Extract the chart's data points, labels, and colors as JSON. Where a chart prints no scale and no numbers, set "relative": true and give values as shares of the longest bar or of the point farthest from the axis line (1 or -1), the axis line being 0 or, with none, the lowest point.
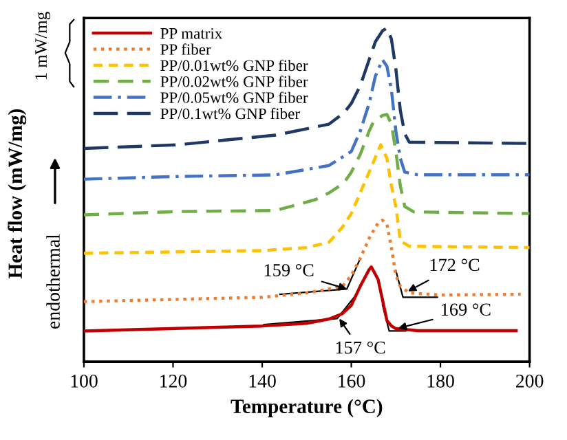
{
  "chart_data": {
    "type": "line",
    "xlabel": "Temperature (°C)",
    "ylabel": "Heat flow (mW/mg)",
    "relative": true,
    "xlim": [
      100,
      200
    ],
    "xticks": [
      100,
      120,
      140,
      160,
      180,
      200
    ],
    "legend": "top left",
    "series": [
      {
        "name": "PP matrix",
        "color": "#c00000",
        "line_style": "solid",
        "x": [
          100,
          140,
          150,
          155,
          158,
          160,
          162,
          163,
          164,
          164.5,
          166,
          167,
          168,
          169,
          170,
          175,
          197
        ],
        "values": [
          0.092,
          0.107,
          0.115,
          0.128,
          0.144,
          0.169,
          0.226,
          0.251,
          0.276,
          0.284,
          0.247,
          0.185,
          0.123,
          0.107,
          0.099,
          0.093,
          0.093
        ]
      },
      {
        "name": "PP fiber",
        "color": "#ed7d31",
        "line_style": "dotted",
        "x": [
          100,
          140,
          150,
          155,
          158,
          160,
          162,
          164,
          166,
          167,
          168,
          169,
          170,
          171,
          173,
          180,
          198
        ],
        "values": [
          0.18,
          0.193,
          0.206,
          0.218,
          0.226,
          0.259,
          0.309,
          0.37,
          0.416,
          0.424,
          0.412,
          0.342,
          0.259,
          0.226,
          0.206,
          0.2,
          0.202
        ]
      },
      {
        "name": "PP/0.01wt% GNP fiber",
        "color": "#ffc000",
        "line_style": "dashed",
        "x": [
          100,
          140,
          150,
          155,
          158,
          160,
          162,
          164,
          166.6,
          168,
          169,
          170,
          171,
          173,
          200
        ],
        "values": [
          0.325,
          0.333,
          0.342,
          0.358,
          0.403,
          0.444,
          0.506,
          0.568,
          0.65,
          0.609,
          0.527,
          0.465,
          0.362,
          0.346,
          0.342
        ]
      },
      {
        "name": "PP/0.02wt% GNP fiber",
        "color": "#70ad47",
        "line_style": "longdashed",
        "x": [
          100,
          121,
          143,
          152,
          155,
          158.3,
          160,
          162,
          164,
          165,
          167,
          168,
          169,
          170,
          171,
          172,
          174,
          200
        ],
        "values": [
          0.44,
          0.45,
          0.453,
          0.486,
          0.506,
          0.535,
          0.568,
          0.621,
          0.691,
          0.72,
          0.738,
          0.741,
          0.712,
          0.63,
          0.527,
          0.465,
          0.449,
          0.444
        ]
      },
      {
        "name": "PP/0.05wt% GNP fiber",
        "color": "#4472c4",
        "line_style": "dashdot",
        "x": [
          100,
          121,
          143,
          155,
          160,
          162,
          164,
          165.4,
          167,
          168,
          169,
          170,
          171,
          172,
          175,
          200
        ],
        "values": [
          0.547,
          0.555,
          0.56,
          0.588,
          0.63,
          0.691,
          0.774,
          0.856,
          0.905,
          0.885,
          0.815,
          0.691,
          0.609,
          0.568,
          0.56,
          0.56
        ]
      },
      {
        "name": "PP/0.1wt% GNP fiber",
        "color": "#1f3864",
        "line_style": "loosedashed",
        "x": [
          100,
          121,
          143,
          155,
          158.3,
          160,
          162,
          164,
          165.4,
          167,
          168,
          169,
          170,
          171,
          172,
          173,
          200
        ],
        "values": [
          0.639,
          0.65,
          0.679,
          0.712,
          0.745,
          0.774,
          0.827,
          0.905,
          0.959,
          0.992,
          1.0,
          0.967,
          0.877,
          0.753,
          0.683,
          0.658,
          0.654
        ]
      },
      {
        "color": "#000000",
        "line_style": "solid",
        "x": [
          144,
          159,
          162
        ],
        "values": [
          0.202,
          0.218,
          0.309
        ]
      },
      {
        "color": "#000000",
        "line_style": "solid",
        "x": [
          170,
          171.6,
          179.3
        ],
        "values": [
          0.273,
          0.193,
          0.193
        ]
      },
      {
        "color": "#000000",
        "line_style": "solid",
        "x": [
          140.4,
          156.8,
          161.4
        ],
        "values": [
          0.111,
          0.129,
          0.206
        ]
      },
      {
        "color": "#000000",
        "line_style": "solid",
        "x": [
          167,
          168.5,
          172.2
        ],
        "values": [
          0.17,
          0.092,
          0.092
        ]
      }
    ],
    "annotations": [
      {
        "text": "159 °C",
        "x": 159,
        "y": 0.218
      },
      {
        "text": "172 °C",
        "x": 172.7,
        "y": 0.211
      },
      {
        "text": "157 °C",
        "x": 157.3,
        "y": 0.129
      },
      {
        "text": "169 °C",
        "x": 170.5,
        "y": 0.1
      },
      "1 mW/mg",
      "endothermal"
    ]
  }
}
